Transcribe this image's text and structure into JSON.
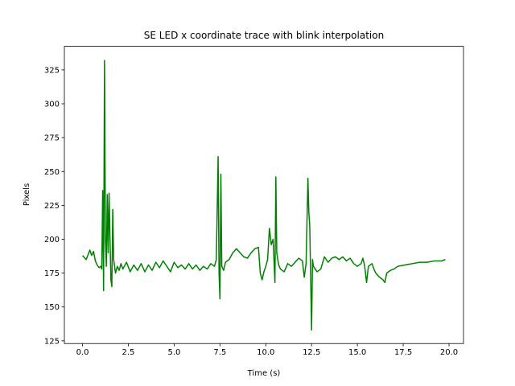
{
  "chart_data": {
    "type": "line",
    "title": "SE LED x coordinate trace with blink interpolation",
    "xlabel": "Time (s)",
    "ylabel": "Pixels",
    "x": [
      0.0,
      0.2,
      0.4,
      0.5,
      0.6,
      0.7,
      0.8,
      0.9,
      1.0,
      1.05,
      1.1,
      1.15,
      1.2,
      1.25,
      1.3,
      1.35,
      1.4,
      1.45,
      1.5,
      1.55,
      1.6,
      1.65,
      1.7,
      1.8,
      1.9,
      2.0,
      2.1,
      2.2,
      2.4,
      2.6,
      2.8,
      3.0,
      3.2,
      3.4,
      3.6,
      3.8,
      4.0,
      4.2,
      4.4,
      4.6,
      4.8,
      5.0,
      5.2,
      5.4,
      5.6,
      5.8,
      6.0,
      6.2,
      6.4,
      6.6,
      6.8,
      7.0,
      7.2,
      7.3,
      7.4,
      7.45,
      7.5,
      7.55,
      7.6,
      7.7,
      7.8,
      8.0,
      8.2,
      8.4,
      8.6,
      8.8,
      9.0,
      9.2,
      9.4,
      9.6,
      9.7,
      9.8,
      9.9,
      10.0,
      10.1,
      10.2,
      10.3,
      10.4,
      10.5,
      10.55,
      10.6,
      10.7,
      10.8,
      11.0,
      11.2,
      11.4,
      11.6,
      11.8,
      12.0,
      12.1,
      12.2,
      12.3,
      12.35,
      12.4,
      12.5,
      12.55,
      12.6,
      12.8,
      13.0,
      13.2,
      13.4,
      13.6,
      13.8,
      14.0,
      14.2,
      14.4,
      14.6,
      14.8,
      15.0,
      15.2,
      15.3,
      15.4,
      15.5,
      15.6,
      15.8,
      15.9,
      16.0,
      16.2,
      16.4,
      16.5,
      16.6,
      16.8,
      17.0,
      17.2,
      17.6,
      18.0,
      18.4,
      18.8,
      19.2,
      19.6,
      19.8
    ],
    "series": [
      {
        "name": "SE LED x",
        "color": "#008000",
        "values": [
          188,
          185,
          192,
          188,
          191,
          184,
          181,
          179,
          180,
          178,
          236,
          162,
          332,
          200,
          180,
          233,
          190,
          234,
          200,
          170,
          165,
          222,
          185,
          175,
          180,
          177,
          182,
          178,
          183,
          176,
          181,
          177,
          182,
          176,
          181,
          177,
          183,
          179,
          184,
          180,
          176,
          183,
          179,
          181,
          178,
          182,
          178,
          181,
          177,
          180,
          178,
          182,
          180,
          185,
          261,
          175,
          156,
          248,
          180,
          177,
          183,
          185,
          190,
          193,
          190,
          187,
          186,
          190,
          193,
          194,
          175,
          170,
          176,
          180,
          185,
          208,
          196,
          200,
          168,
          246,
          190,
          181,
          178,
          176,
          182,
          180,
          183,
          186,
          184,
          172,
          182,
          245,
          220,
          210,
          133,
          185,
          180,
          176,
          178,
          187,
          183,
          186,
          187,
          185,
          187,
          184,
          186,
          182,
          180,
          182,
          186,
          180,
          168,
          180,
          182,
          178,
          175,
          172,
          170,
          168,
          175,
          177,
          178,
          180,
          181,
          182,
          183,
          183,
          184,
          184,
          185
        ]
      }
    ],
    "xlim": [
      -0.99,
      20.79
    ],
    "ylim": [
      123,
      342.4
    ],
    "xticks": [
      {
        "value": 0,
        "label": "0.0"
      },
      2.5,
      {
        "value": 5,
        "label": "5.0"
      },
      7.5,
      {
        "value": 10,
        "label": "10.0"
      },
      12.5,
      {
        "value": 15,
        "label": "15.0"
      },
      17.5,
      {
        "value": 20,
        "label": "20.0"
      }
    ],
    "yticks": [
      125,
      150,
      175,
      200,
      225,
      250,
      275,
      300,
      325
    ]
  }
}
